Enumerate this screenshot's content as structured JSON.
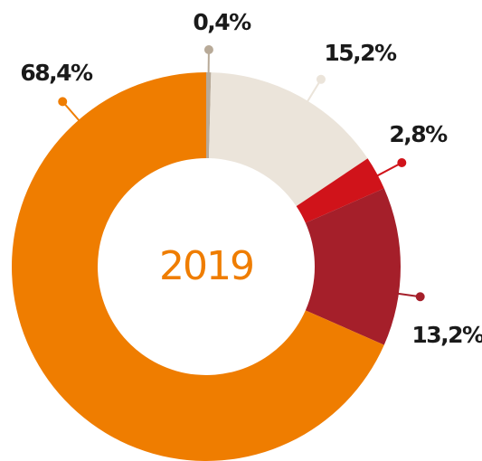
{
  "chart_data": {
    "type": "donut",
    "title": "2019",
    "values": [
      0.4,
      15.2,
      2.8,
      13.2,
      68.4
    ],
    "value_labels": [
      "0,4%",
      "15,2%",
      "2,8%",
      "13,2%",
      "68,4%"
    ],
    "colors": [
      "#b8aa98",
      "#ebe4da",
      "#d0131a",
      "#a51f2a",
      "#ef7d00"
    ]
  }
}
